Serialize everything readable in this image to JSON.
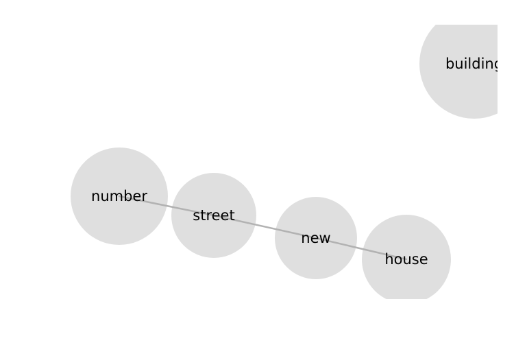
{
  "diagram": {
    "type": "word-network",
    "node_color": "#dedede",
    "edge_color": "#b2b2b2",
    "label_color": "#000000",
    "nodes": [
      {
        "id": "number",
        "label": "number"
      },
      {
        "id": "street",
        "label": "street"
      },
      {
        "id": "new",
        "label": "new"
      },
      {
        "id": "house",
        "label": "house"
      },
      {
        "id": "building",
        "label": "building"
      }
    ],
    "edges": [
      {
        "source": "number",
        "target": "street"
      },
      {
        "source": "street",
        "target": "new"
      },
      {
        "source": "new",
        "target": "house"
      }
    ]
  }
}
